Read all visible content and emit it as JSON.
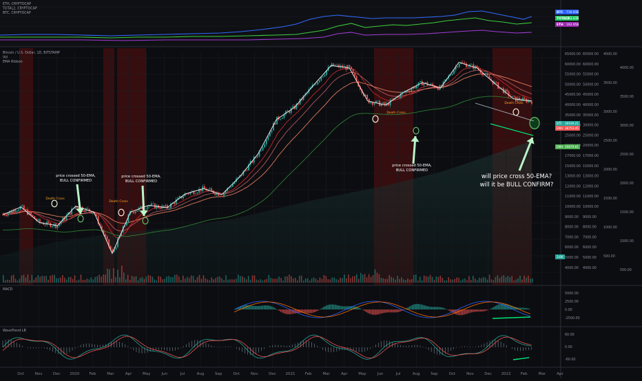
{
  "top_panel": {
    "legend": [
      "ETH, CRYPTOCAP",
      "TOTAL2, CRYPTOCAP",
      "BTC, CRYPTOCAP"
    ],
    "badges": [
      {
        "label": "BTC",
        "value": "716.93B",
        "color": "#2962ff"
      },
      {
        "label": "TOTAL2",
        "value": "583.43B",
        "color": "#22c55e"
      },
      {
        "label": "ETH",
        "value": "192.95B",
        "color": "#9c27b0"
      }
    ],
    "series_colors": {
      "BTC": "#2f6bff",
      "TOTAL2": "#3ccf3c",
      "ETH": "#a33cd6"
    }
  },
  "main_panel": {
    "legend": [
      "Bitcoin / U.S. Dollar, 1D, BITSTAMP",
      "Vol",
      "EMA Ribbon"
    ],
    "right_axis": [
      "65000.00",
      "60000.00",
      "55000.00",
      "50000.00",
      "45000.00",
      "40000.00",
      "35000.00",
      "30000.00",
      "25000.00",
      "20000.00",
      "17000.00",
      "15000.00",
      "13000.00",
      "12000.00",
      "11000.00",
      "10000.00",
      "9000.00",
      "8000.00",
      "7000.00",
      "6000.00",
      "5000.00",
      "4000.00"
    ],
    "secondary_axis": [
      "4000.00",
      "3500.00",
      "3000.00",
      "2500.00",
      "2000.00",
      "1500.00",
      "1000.00",
      "500.00"
    ],
    "price_tags": [
      {
        "label": "BTC",
        "value": "36939.21",
        "color": "#26a69a"
      },
      {
        "label": "EMA",
        "value": "38753.45",
        "color": "#ef5350"
      },
      {
        "label": "EMA",
        "value": "29879.81",
        "color": "#4caf50"
      }
    ],
    "vol_tag": "3.6K",
    "annotations": {
      "death_cross": "Death Cross",
      "callout_1": [
        "price crossed 50-EMA,",
        "BULL CONFIRMED"
      ],
      "callout_2": [
        "price crossed 50-EMA,",
        "BULL CONFIRMED"
      ],
      "callout_3": [
        "price crossed 50-EMA,",
        "BULL CONFIRMED"
      ],
      "question": [
        "will price cross 50-EMA?",
        "will it be BULL CONFIRM?"
      ]
    }
  },
  "macd_panel": {
    "label": "MACD",
    "axis": [
      "5000.00",
      "2500.00",
      "0.00",
      "-2500.00"
    ]
  },
  "wavetrend_panel": {
    "label": "WaveTrend LB",
    "axis": [
      "60.00",
      "0.00",
      "-60.00"
    ]
  },
  "time_axis": [
    "Oct",
    "Nov",
    "Dec",
    "2020",
    "Feb",
    "Mar",
    "Apr",
    "May",
    "Jun",
    "Jul",
    "Aug",
    "Sep",
    "Oct",
    "Nov",
    "Dec",
    "2021",
    "Feb",
    "Mar",
    "Apr",
    "May",
    "Jun",
    "Jul",
    "Aug",
    "Sep",
    "Oct",
    "Nov",
    "Dec",
    "2022",
    "Feb",
    "Mar",
    "Apr"
  ],
  "chart_data": {
    "type": "line",
    "x": [
      "2019-09",
      "2019-10",
      "2019-11",
      "2019-12",
      "2020-01",
      "2020-02",
      "2020-03",
      "2020-04",
      "2020-05",
      "2020-06",
      "2020-07",
      "2020-08",
      "2020-09",
      "2020-10",
      "2020-11",
      "2020-12",
      "2021-01",
      "2021-02",
      "2021-03",
      "2021-04",
      "2021-05",
      "2021-06",
      "2021-07",
      "2021-08",
      "2021-09",
      "2021-10",
      "2021-11",
      "2021-12",
      "2022-01",
      "2022-02"
    ],
    "series": [
      {
        "name": "Bitcoin / U.S. Dollar",
        "values": [
          8300,
          9200,
          7500,
          7200,
          9300,
          8600,
          5000,
          8600,
          9400,
          9100,
          10900,
          11700,
          10800,
          13700,
          18500,
          28900,
          34000,
          45000,
          58800,
          57000,
          37000,
          35000,
          41500,
          47000,
          43800,
          61300,
          57000,
          46200,
          38000,
          36939
        ]
      }
    ],
    "ylog": true,
    "ylim": [
      3500,
      70000
    ]
  }
}
